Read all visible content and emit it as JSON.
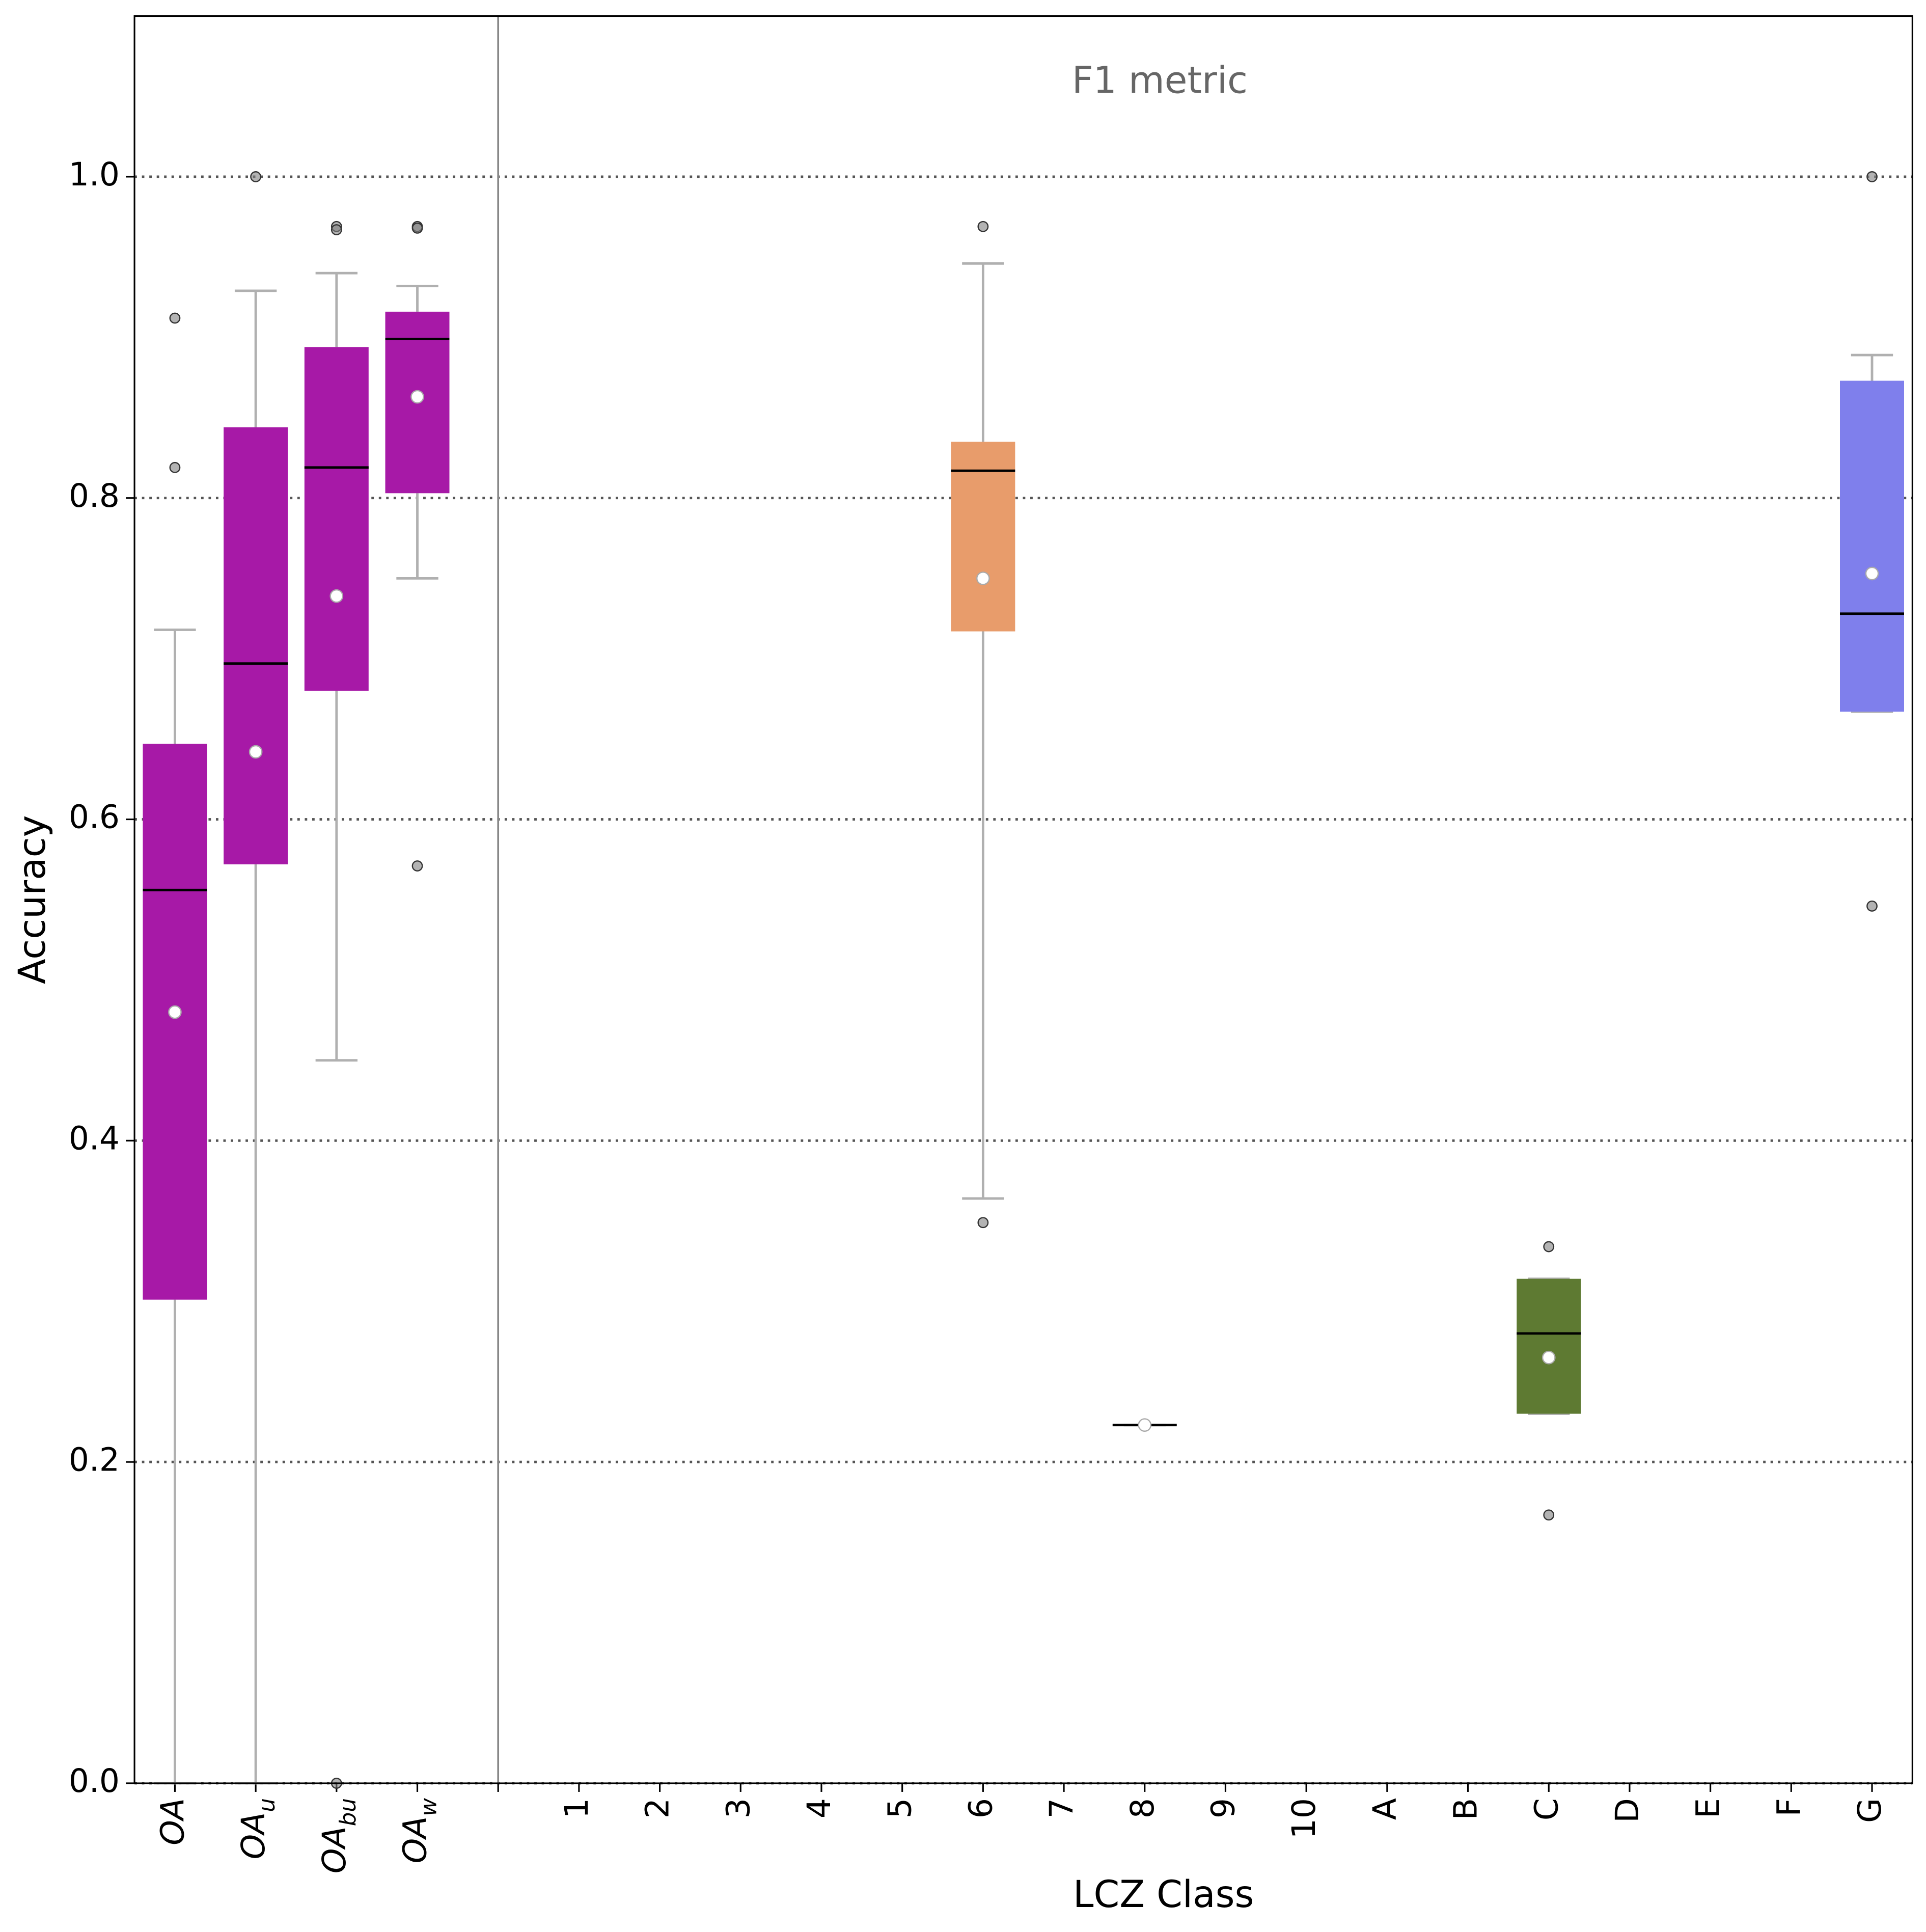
{
  "chart_data": {
    "type": "box",
    "title": "F1 metric",
    "x_label": "LCZ Class",
    "y_label": "Accuracy",
    "categories": [
      {
        "label": "OA"
      },
      {
        "label": "OA",
        "sub": "u"
      },
      {
        "label": "OA",
        "sub": "bu"
      },
      {
        "label": "OA",
        "sub": "w"
      },
      null,
      "1",
      "2",
      "3",
      "4",
      "5",
      "6",
      "7",
      "8",
      "9",
      "10",
      "A",
      "B",
      "C",
      "D",
      "E",
      "F",
      "G"
    ],
    "boxes": [
      {
        "color": "#a719a7",
        "whislo": 0,
        "q1": 0.301,
        "median": 0.556,
        "q3": 0.647,
        "whishi": 0.718,
        "mean": 0.48,
        "fliers": [
          0.912,
          0.819
        ]
      },
      {
        "color": "#a719a7",
        "whislo": 0,
        "q1": 0.572,
        "median": 0.697,
        "q3": 0.844,
        "whishi": 0.929,
        "mean": 0.642,
        "fliers": [
          1.0
        ]
      },
      {
        "color": "#a719a7",
        "whislo": 0.45,
        "q1": 0.68,
        "median": 0.819,
        "q3": 0.894,
        "whishi": 0.94,
        "mean": 0.739,
        "fliers": [
          0.969,
          0.967,
          0.0
        ]
      },
      {
        "color": "#a719a7",
        "whislo": 0.75,
        "q1": 0.803,
        "median": 0.899,
        "q3": 0.916,
        "whishi": 0.932,
        "mean": 0.863,
        "fliers": [
          0.969,
          0.968,
          0.571
        ]
      },
      null,
      null,
      null,
      null,
      null,
      null,
      {
        "color": "#e89c6b",
        "whislo": 0.364,
        "q1": 0.717,
        "median": 0.817,
        "q3": 0.835,
        "whishi": 0.946,
        "mean": 0.75,
        "fliers": [
          0.969,
          0.349
        ]
      },
      null,
      {
        "color": "#a719a7",
        "whislo": 0.223,
        "q1": 0.223,
        "median": 0.223,
        "q3": 0.223,
        "whishi": 0.223,
        "mean": 0.223,
        "fliers": []
      },
      null,
      null,
      null,
      null,
      {
        "color": "#5e7a32",
        "whislo": 0.23,
        "q1": 0.23,
        "median": 0.28,
        "q3": 0.314,
        "whishi": 0.314,
        "mean": 0.265,
        "fliers": [
          0.334,
          0.167
        ]
      },
      null,
      null,
      null,
      {
        "color": "#7f7fec",
        "whislo": 0.667,
        "q1": 0.667,
        "median": 0.728,
        "q3": 0.873,
        "whishi": 0.889,
        "mean": 0.753,
        "fliers": [
          1.0,
          0.546
        ]
      }
    ],
    "ylim": [
      0,
      1.1
    ],
    "yticks": [
      {
        "value": 0,
        "label": "0.0"
      },
      0.2,
      0.4,
      0.6,
      0.8,
      {
        "value": 1,
        "label": "1.0"
      }
    ],
    "grid": true
  }
}
